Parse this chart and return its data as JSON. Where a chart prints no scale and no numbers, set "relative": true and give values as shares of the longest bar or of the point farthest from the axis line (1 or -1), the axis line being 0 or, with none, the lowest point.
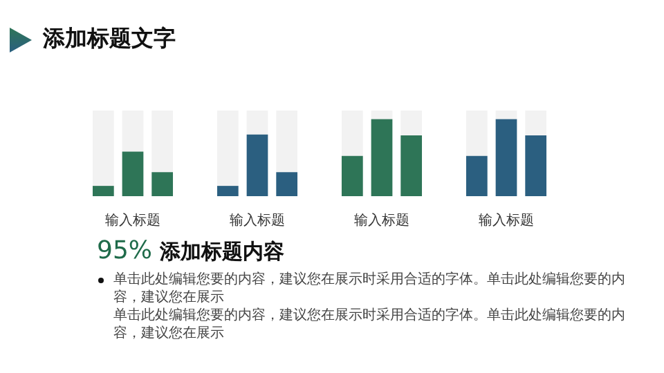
{
  "chart_data": [
    {
      "type": "other",
      "title": "添加标题文字"
    },
    {
      "type": "bar",
      "stacked": true,
      "relative": true,
      "categories": [
        null,
        null,
        null
      ],
      "xlabel": "输入标题",
      "series": [
        {
          "color": "#2e7557",
          "values": [
            0.12,
            0.52,
            0.28
          ]
        },
        {
          "color": "#f2f2f2",
          "values": [
            0.88,
            0.48,
            0.72
          ]
        }
      ]
    },
    {
      "type": "bar",
      "stacked": true,
      "relative": true,
      "categories": [
        null,
        null,
        null
      ],
      "xlabel": "输入标题",
      "series": [
        {
          "color": "#2b5f80",
          "values": [
            0.12,
            0.72,
            0.28
          ]
        },
        {
          "color": "#f2f2f2",
          "values": [
            0.88,
            0.28,
            0.72
          ]
        }
      ]
    },
    {
      "type": "bar",
      "stacked": true,
      "relative": true,
      "categories": [
        null,
        null,
        null
      ],
      "xlabel": "输入标题",
      "series": [
        {
          "color": "#2e7557",
          "values": [
            0.47,
            0.9,
            0.71
          ]
        },
        {
          "color": "#f2f2f2",
          "values": [
            0.53,
            0.1,
            0.29
          ]
        }
      ]
    },
    {
      "type": "bar",
      "stacked": true,
      "relative": true,
      "categories": [
        null,
        null,
        null
      ],
      "xlabel": "输入标题",
      "series": [
        {
          "color": "#2b5f80",
          "values": [
            0.47,
            0.9,
            0.71
          ]
        },
        {
          "color": "#f2f2f2",
          "values": [
            0.53,
            0.1,
            0.29
          ]
        }
      ]
    },
    {
      "type": "other",
      "title": "95% 添加标题内容",
      "annotations": [
        "单击此处编辑您要的内容，建议您在展示时采用合适的字体。单击此处编辑您要的内容，建议您在展示",
        "单击此处编辑您要的内容，建议您在展示时采用合适的字体。单击此处编辑您要的内容，建议您在展示"
      ]
    }
  ]
}
